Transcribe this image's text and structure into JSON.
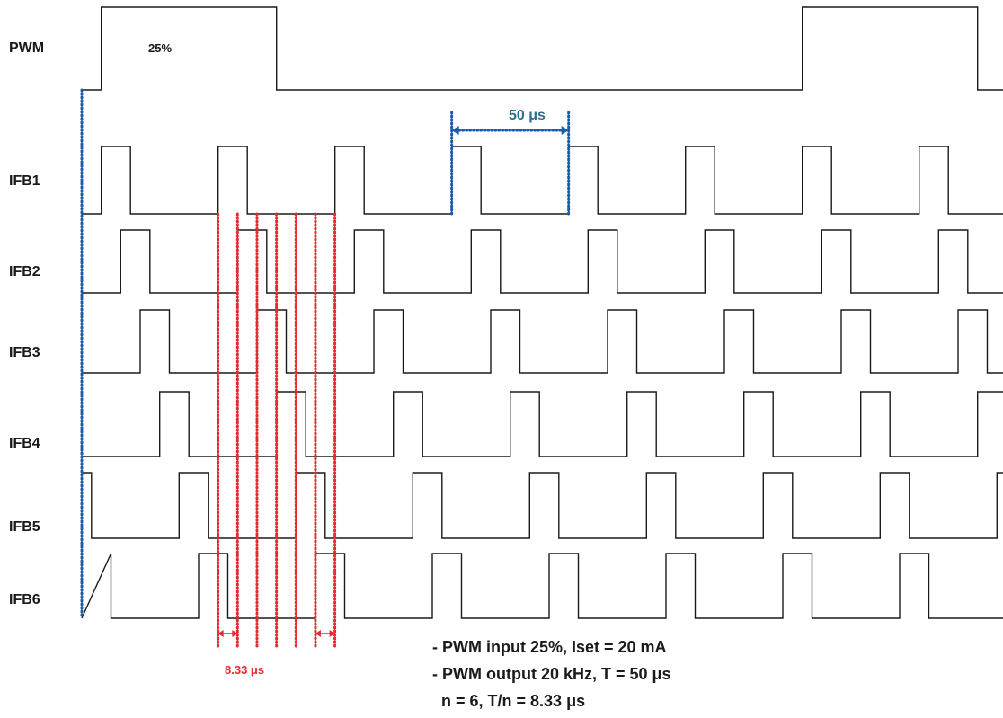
{
  "signals": [
    {
      "name": "PWM",
      "label": "PWM",
      "period_us": 300,
      "high_us": 75,
      "rise_us": 8.33,
      "annotation": "25%"
    },
    {
      "name": "IFB1",
      "label": "IFB1",
      "period_us": 50,
      "high_us": 12.5,
      "rise_us": 8.33
    },
    {
      "name": "IFB2",
      "label": "IFB2",
      "period_us": 50,
      "high_us": 12.5,
      "rise_us": 16.67
    },
    {
      "name": "IFB3",
      "label": "IFB3",
      "period_us": 50,
      "high_us": 12.5,
      "rise_us": 25.0
    },
    {
      "name": "IFB4",
      "label": "IFB4",
      "period_us": 50,
      "high_us": 12.5,
      "rise_us": 33.33
    },
    {
      "name": "IFB5",
      "label": "IFB5",
      "period_us": 50,
      "high_us": 12.5,
      "rise_us": 41.67
    },
    {
      "name": "IFB6",
      "label": "IFB6",
      "period_us": 50,
      "high_us": 12.5,
      "rise_us": 0.0
    }
  ],
  "period_marker": {
    "label": "50 μs",
    "value_us": 50
  },
  "phase_marker": {
    "label": "8.33 μs",
    "value_us": 8.33
  },
  "notes": [
    "- PWM input 25%, Iset = 20 mA",
    "- PWM output 20 kHz, T = 50 μs",
    "  n = 6, T/n = 8.33 μs"
  ],
  "colors": {
    "trace": "#1a1a1a",
    "blue_marker": "#1a5ca8",
    "period_text": "#2f6e8a",
    "red_marker": "#e8292f"
  }
}
